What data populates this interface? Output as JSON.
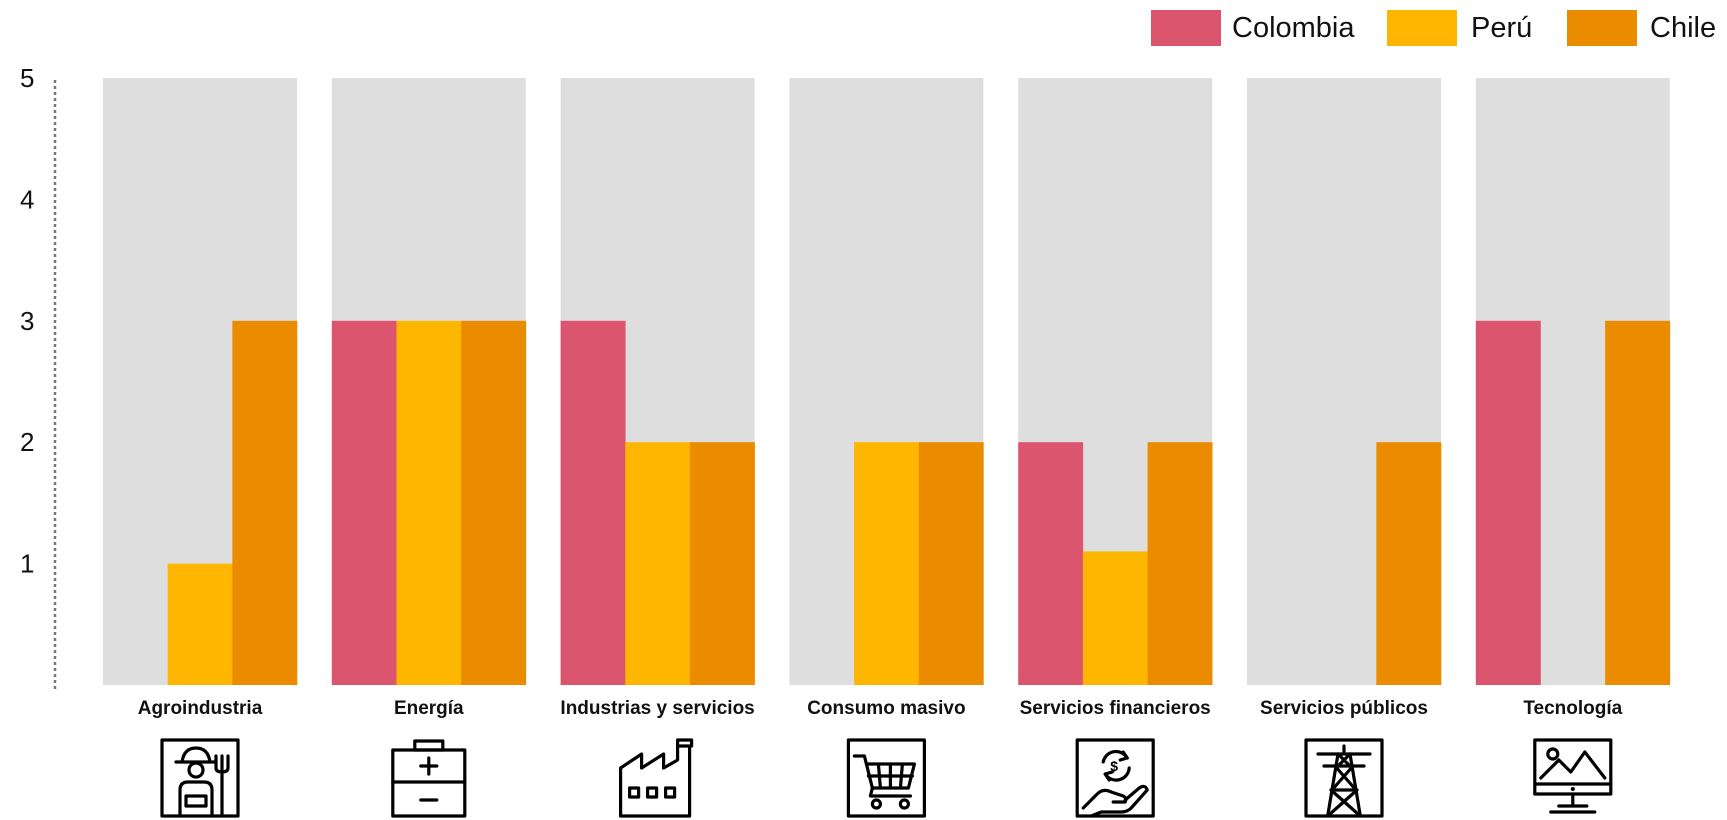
{
  "chart_data": {
    "type": "bar",
    "categories": [
      "Agroindustria",
      "Energía",
      "Industrias y servicios",
      "Consumo masivo",
      "Servicios financieros",
      "Servicios públicos",
      "Tecnología"
    ],
    "series": [
      {
        "name": "Colombia",
        "color": "#DC556F",
        "values": [
          0,
          3,
          3,
          0,
          2,
          0,
          3
        ]
      },
      {
        "name": "Perú",
        "color": "#FFB600",
        "values": [
          1,
          3,
          2,
          2,
          1.1,
          0,
          0
        ]
      },
      {
        "name": "Chile",
        "color": "#EB8C00",
        "values": [
          3,
          3,
          2,
          2,
          2,
          2,
          3
        ]
      }
    ],
    "background_color": "#DEDEDE",
    "ylim": [
      0,
      5
    ],
    "yticks": [
      1,
      2,
      3,
      4,
      5
    ],
    "legend_position": "top-right",
    "grid": false,
    "category_icons": [
      "farmer-icon",
      "battery-icon",
      "factory-icon",
      "shopping-cart-icon",
      "financial-hand-icon",
      "power-tower-icon",
      "monitor-image-icon"
    ]
  }
}
